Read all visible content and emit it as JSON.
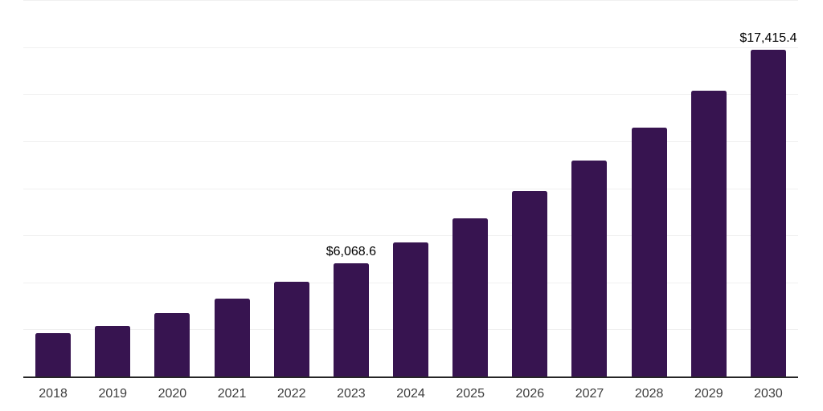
{
  "chart_data": {
    "type": "bar",
    "categories": [
      "2018",
      "2019",
      "2020",
      "2021",
      "2022",
      "2023",
      "2024",
      "2025",
      "2026",
      "2027",
      "2028",
      "2029",
      "2030"
    ],
    "values": [
      2360,
      2720,
      3430,
      4180,
      5070,
      6068.6,
      7180,
      8450,
      9880,
      11510,
      13280,
      15240,
      17415.4
    ],
    "data_labels": {
      "2023": "$6,068.6",
      "2030": "$17,415.4"
    },
    "title": "",
    "xlabel": "",
    "ylabel": "",
    "ylim": [
      0,
      20000
    ],
    "gridline_interval": 2500,
    "grid": "horizontal",
    "legend_position": "none"
  },
  "style": {
    "bar_color": "#371450",
    "gridline_color": "#f0f0f0",
    "axis_line_color": "#262626",
    "data_label_color": "#000000",
    "tick_label_color": "#3d3d3d",
    "background_color": "#ffffff"
  }
}
